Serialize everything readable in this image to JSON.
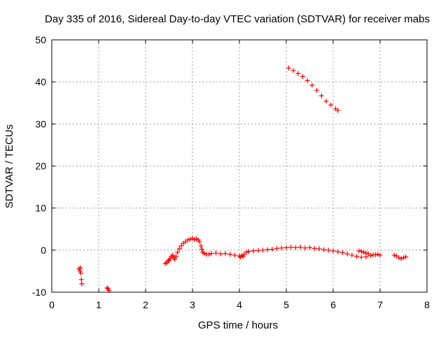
{
  "chart_data": {
    "type": "scatter",
    "title": "Day 335 of 2016, Sidereal Day-to-day VTEC variation (SDTVAR) for receiver mabs",
    "xlabel": "GPS time / hours",
    "ylabel": "SDTVAR / TECUs",
    "xlim": [
      0,
      8
    ],
    "ylim": [
      -10,
      50
    ],
    "xticks": [
      0,
      1,
      2,
      3,
      4,
      5,
      6,
      7,
      8
    ],
    "yticks": [
      -10,
      0,
      10,
      20,
      30,
      40,
      50
    ],
    "grid": true,
    "marker": "+",
    "color": "#ff0000",
    "series": [
      {
        "name": "SDTVAR",
        "x": [
          0.58,
          0.6,
          0.61,
          0.62,
          0.63,
          0.64,
          1.18,
          1.2,
          1.22,
          2.42,
          2.45,
          2.48,
          2.5,
          2.52,
          2.55,
          2.58,
          2.6,
          2.62,
          2.65,
          2.68,
          2.72,
          2.76,
          2.8,
          2.85,
          2.9,
          2.95,
          3.0,
          3.04,
          3.08,
          3.12,
          3.15,
          3.18,
          3.2,
          3.22,
          3.25,
          3.3,
          3.35,
          3.4,
          3.5,
          3.6,
          3.7,
          3.8,
          3.9,
          4.0,
          4.02,
          4.05,
          4.08,
          4.1,
          4.15,
          4.2,
          4.3,
          4.4,
          4.5,
          4.6,
          4.7,
          4.8,
          4.9,
          5.0,
          5.1,
          5.2,
          5.3,
          5.4,
          5.5,
          5.6,
          5.7,
          5.8,
          5.9,
          6.0,
          6.1,
          6.2,
          6.3,
          6.4,
          6.5,
          6.6,
          6.7,
          6.8,
          6.9,
          7.0,
          6.55,
          6.6,
          6.65,
          6.7,
          6.75,
          6.85,
          6.95,
          7.3,
          7.35,
          7.4,
          7.45,
          7.5,
          7.55,
          5.05,
          5.15,
          5.25,
          5.35,
          5.45,
          5.55,
          5.65,
          5.75,
          5.85,
          5.95,
          6.05,
          6.1
        ],
        "y": [
          -4.5,
          -5.0,
          -4.2,
          -5.5,
          -7.0,
          -8.0,
          -9.0,
          -9.2,
          -9.6,
          -3.2,
          -3.0,
          -2.6,
          -2.4,
          -2.0,
          -1.5,
          -1.2,
          -1.8,
          -2.2,
          -1.5,
          -0.5,
          0.3,
          1.0,
          1.6,
          2.0,
          2.4,
          2.6,
          2.8,
          2.5,
          2.7,
          2.4,
          2.0,
          1.0,
          0.2,
          -0.5,
          -0.8,
          -1.0,
          -1.0,
          -0.8,
          -0.7,
          -0.9,
          -0.8,
          -1.0,
          -1.2,
          -1.4,
          -1.7,
          -1.3,
          -1.5,
          -1.0,
          -0.5,
          -0.3,
          -0.2,
          -0.1,
          0.0,
          0.1,
          0.2,
          0.4,
          0.5,
          0.6,
          0.7,
          0.6,
          0.7,
          0.5,
          0.6,
          0.4,
          0.3,
          0.1,
          0.0,
          -0.2,
          -0.4,
          -0.6,
          -0.9,
          -1.2,
          -1.5,
          -1.7,
          -1.6,
          -1.3,
          -1.1,
          -1.2,
          -0.2,
          -0.3,
          -0.5,
          -0.7,
          -0.9,
          -1.1,
          -1.0,
          -1.2,
          -1.4,
          -1.8,
          -2.0,
          -1.8,
          -1.6,
          43.3,
          42.7,
          42.0,
          41.3,
          40.3,
          39.2,
          38.0,
          36.7,
          35.4,
          34.5,
          33.6,
          33.2
        ]
      }
    ]
  }
}
